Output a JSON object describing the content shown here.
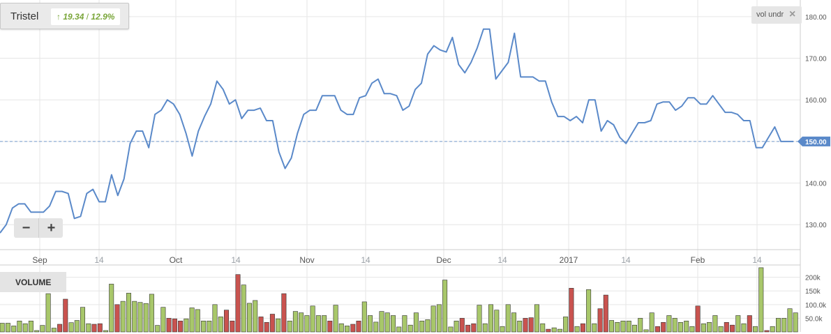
{
  "header": {
    "title": "Tristel",
    "change_abs": "19.34",
    "change_sep": "/",
    "change_pct": "12.9%",
    "arrow_icon": "up-arrow-icon"
  },
  "indicator": {
    "label": "vol undr",
    "close_icon": "close-icon"
  },
  "zoom": {
    "minus_label": "−",
    "plus_label": "+"
  },
  "volume_panel": {
    "label": "VOLUME"
  },
  "colors": {
    "line": "#5a89c9",
    "current_price": "#5a89c9",
    "vol_up": "#a8c76a",
    "vol_down": "#c9534f",
    "grid": "#e6e6e6"
  },
  "chart_data": [
    {
      "type": "line",
      "title": "",
      "series": [
        {
          "values": [
            128,
            130,
            134,
            135,
            135,
            133,
            133,
            133,
            134.5,
            138,
            138,
            137.5,
            131.5,
            132,
            137.5,
            138.5,
            135.5,
            135.5,
            142,
            137,
            141,
            149.5,
            152.5,
            152.5,
            148.5,
            156.5,
            157.5,
            160,
            159,
            156.5,
            152,
            146.5,
            152.5,
            156,
            159,
            164.5,
            162.5,
            159,
            160,
            155.5,
            157.5,
            157.5,
            158,
            155,
            155,
            147.5,
            143.5,
            146,
            152,
            156.5,
            157.5,
            157.5,
            161,
            161,
            161,
            157.5,
            156.5,
            156.5,
            160.5,
            161,
            164,
            165,
            161.5,
            161.5,
            161,
            157.5,
            158.5,
            162.5,
            164,
            171,
            173,
            172,
            171.5,
            175,
            168.5,
            166.5,
            169,
            172.5,
            177,
            177,
            165,
            167,
            169,
            176,
            165.5,
            165.5,
            165.5,
            164.5,
            164.5,
            159.5,
            156,
            156,
            155,
            156,
            154.5,
            160,
            160,
            152.5,
            155,
            154,
            151,
            149.5,
            152,
            154.5,
            154.5,
            155,
            159,
            159.5,
            159.5,
            157.5,
            158.5,
            160.5,
            160.5,
            159,
            159,
            161,
            159,
            157,
            157,
            156.5,
            155,
            155,
            148.5,
            148.5,
            151,
            153.5,
            150,
            150,
            150
          ]
        }
      ],
      "x_tick_labels": [
        "Sep",
        "14",
        "Oct",
        "14",
        "Nov",
        "14",
        "Dec",
        "14",
        "2017",
        "14",
        "Feb",
        "14"
      ],
      "y_tick_labels": [
        "130.00",
        "140.00",
        "150.00",
        "160.00",
        "170.00",
        "180.00"
      ],
      "ylim": [
        124,
        184
      ],
      "current_value_label": "150.00",
      "grid": true
    },
    {
      "type": "bar",
      "title": "VOLUME",
      "values": [
        32000,
        32000,
        22000,
        40000,
        30000,
        40000,
        5000,
        24000,
        140000,
        14000,
        28000,
        120000,
        34000,
        42000,
        90000,
        30000,
        28000,
        30000,
        5000,
        175000,
        100000,
        112000,
        142000,
        112000,
        108000,
        104000,
        138000,
        24000,
        90000,
        50000,
        48000,
        40000,
        48000,
        88000,
        82000,
        40000,
        40000,
        100000,
        55000,
        80000,
        40000,
        210000,
        172000,
        105000,
        115000,
        55000,
        35000,
        65000,
        48000,
        140000,
        40000,
        75000,
        70000,
        60000,
        95000,
        60000,
        60000,
        40000,
        98000,
        30000,
        22000,
        28000,
        40000,
        110000,
        60000,
        36000,
        75000,
        70000,
        60000,
        18000,
        60000,
        25000,
        70000,
        40000,
        45000,
        95000,
        100000,
        190000,
        18000,
        40000,
        50000,
        25000,
        30000,
        98000,
        30000,
        100000,
        80000,
        20000,
        100000,
        70000,
        40000,
        50000,
        52000,
        100000,
        30000,
        10000,
        15000,
        10000,
        55000,
        160000,
        20000,
        30000,
        155000,
        30000,
        85000,
        135000,
        42000,
        35000,
        40000,
        40000,
        25000,
        50000,
        8000,
        70000,
        20000,
        35000,
        60000,
        50000,
        35000,
        40000,
        20000,
        95000,
        30000,
        35000,
        60000,
        20000,
        35000,
        25000,
        60000,
        30000,
        60000,
        20000,
        235000,
        5000,
        20000,
        50000,
        50000,
        85000,
        70000
      ],
      "directions": [
        "u",
        "u",
        "u",
        "u",
        "u",
        "u",
        "u",
        "u",
        "u",
        "u",
        "d",
        "d",
        "u",
        "u",
        "u",
        "u",
        "d",
        "d",
        "u",
        "u",
        "d",
        "u",
        "u",
        "u",
        "u",
        "u",
        "u",
        "u",
        "u",
        "d",
        "d",
        "d",
        "u",
        "u",
        "u",
        "u",
        "u",
        "u",
        "u",
        "d",
        "d",
        "d",
        "u",
        "u",
        "u",
        "d",
        "d",
        "d",
        "u",
        "d",
        "u",
        "u",
        "u",
        "u",
        "u",
        "u",
        "u",
        "d",
        "u",
        "u",
        "u",
        "d",
        "d",
        "u",
        "u",
        "u",
        "u",
        "u",
        "u",
        "u",
        "u",
        "u",
        "u",
        "u",
        "u",
        "u",
        "u",
        "u",
        "u",
        "u",
        "d",
        "d",
        "d",
        "u",
        "u",
        "u",
        "u",
        "u",
        "u",
        "u",
        "u",
        "d",
        "d",
        "u",
        "u",
        "d",
        "u",
        "u",
        "u",
        "d",
        "u",
        "d",
        "u",
        "u",
        "d",
        "d",
        "u",
        "u",
        "u",
        "u",
        "u",
        "u",
        "u",
        "u",
        "d",
        "d",
        "u",
        "u",
        "u",
        "u",
        "u",
        "d",
        "u",
        "u",
        "u",
        "u",
        "d",
        "d",
        "u",
        "u",
        "d",
        "u",
        "u",
        "d",
        "u",
        "u",
        "u",
        "u",
        "u",
        "u",
        "u"
      ],
      "y_tick_labels": [
        "50.0k",
        "100.0k",
        "150k",
        "200k"
      ],
      "ylim": [
        0,
        245000
      ]
    }
  ]
}
